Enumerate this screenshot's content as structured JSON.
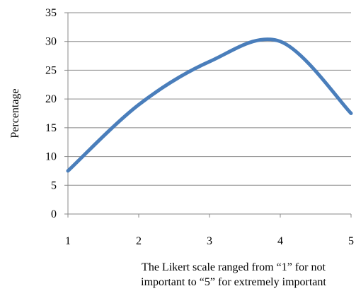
{
  "chart_data": {
    "type": "line",
    "x": [
      1,
      2,
      3,
      4,
      5
    ],
    "series": [
      {
        "values": [
          7.5,
          19,
          26.5,
          30,
          17.5
        ]
      }
    ],
    "xlabel_lines": [
      "The Likert scale ranged from “1” for not",
      "important to “5” for extremely important"
    ],
    "ylabel": "Percentage",
    "xlim": [
      1,
      5
    ],
    "ylim": [
      0,
      35
    ],
    "xticks": [
      "1",
      "2",
      "3",
      "4",
      "5"
    ],
    "yticks": [
      "0",
      "5",
      "10",
      "15",
      "20",
      "25",
      "30",
      "35"
    ],
    "grid": "horizontal",
    "series_color": "#4a7ebb",
    "grid_color": "#888888"
  }
}
